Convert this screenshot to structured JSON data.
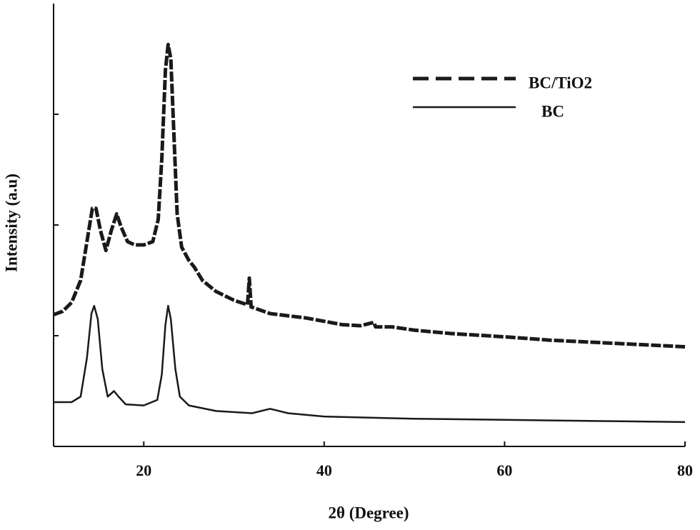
{
  "chart_data": {
    "type": "line",
    "xlabel": "2θ (Degree)",
    "ylabel": "Intensity (a.u)",
    "xlim": [
      10,
      80
    ],
    "xticks": [
      20,
      40,
      60,
      80
    ],
    "ylim": [
      0,
      4
    ],
    "yticks": [
      1,
      2,
      3
    ],
    "ytick_labels_visible": false,
    "legend": "upper right",
    "series": [
      {
        "name": "BC/TiO2",
        "color": "#1a1a1a",
        "line_style": "dashed",
        "x": [
          10,
          11,
          12,
          13,
          13.8,
          14.3,
          14.7,
          15.2,
          15.8,
          16.4,
          17,
          17.5,
          18.2,
          19,
          20,
          21,
          21.6,
          22,
          22.4,
          22.7,
          23,
          23.3,
          23.7,
          24.2,
          25,
          25.6,
          26.5,
          28,
          30,
          31.5,
          31.7,
          31.9,
          34,
          36,
          38,
          40,
          42,
          44,
          45.5,
          45.7,
          47.5,
          50,
          54,
          60,
          65,
          70,
          75,
          80
        ],
        "values": [
          1.19,
          1.22,
          1.3,
          1.5,
          1.9,
          2.15,
          2.15,
          1.95,
          1.77,
          1.95,
          2.1,
          1.98,
          1.85,
          1.82,
          1.82,
          1.85,
          2.05,
          2.6,
          3.4,
          3.63,
          3.5,
          2.9,
          2.1,
          1.8,
          1.68,
          1.62,
          1.5,
          1.4,
          1.32,
          1.28,
          1.52,
          1.26,
          1.2,
          1.18,
          1.16,
          1.13,
          1.1,
          1.09,
          1.12,
          1.08,
          1.08,
          1.05,
          1.02,
          0.99,
          0.96,
          0.94,
          0.92,
          0.9
        ]
      },
      {
        "name": "BC",
        "color": "#1a1a1a",
        "line_style": "solid",
        "x": [
          10,
          12,
          13,
          13.7,
          14.2,
          14.5,
          14.9,
          15.4,
          16,
          16.7,
          17.2,
          18,
          20,
          21.5,
          22,
          22.4,
          22.7,
          23,
          23.5,
          24,
          25,
          28,
          32,
          34,
          36,
          40,
          50,
          60,
          70,
          80
        ],
        "values": [
          0.4,
          0.4,
          0.45,
          0.8,
          1.2,
          1.27,
          1.15,
          0.7,
          0.45,
          0.5,
          0.45,
          0.38,
          0.37,
          0.42,
          0.65,
          1.1,
          1.27,
          1.15,
          0.7,
          0.45,
          0.37,
          0.32,
          0.3,
          0.34,
          0.3,
          0.27,
          0.25,
          0.24,
          0.23,
          0.22
        ]
      }
    ]
  }
}
